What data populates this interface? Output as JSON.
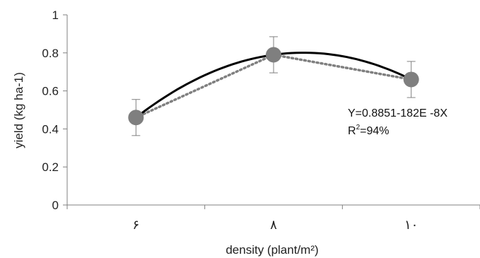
{
  "chart_data": {
    "type": "line",
    "title": "",
    "xlabel": "density (plant/m²)",
    "ylabel": "yield (kg ha-1)",
    "categories": [
      "۶",
      "۸",
      "۱۰"
    ],
    "series": [
      {
        "values": [
          0.46,
          0.79,
          0.66
        ],
        "error": [
          0.095,
          0.095,
          0.095
        ],
        "style": "dotted",
        "color": "#7f7f7f",
        "marker_color": "#7f7f7f"
      }
    ],
    "trendline": {
      "type": "polynomial",
      "color": "#000000",
      "equation": "Y=0.8851-182E -8X",
      "r2_label": "R",
      "r2_sup": "2",
      "r2_value": "=94%"
    },
    "ylim": [
      0,
      1
    ],
    "yticks": [
      "0",
      "0.2",
      "0.4",
      "0.6",
      "0.8",
      "1"
    ],
    "grid": false,
    "legend": "none"
  }
}
